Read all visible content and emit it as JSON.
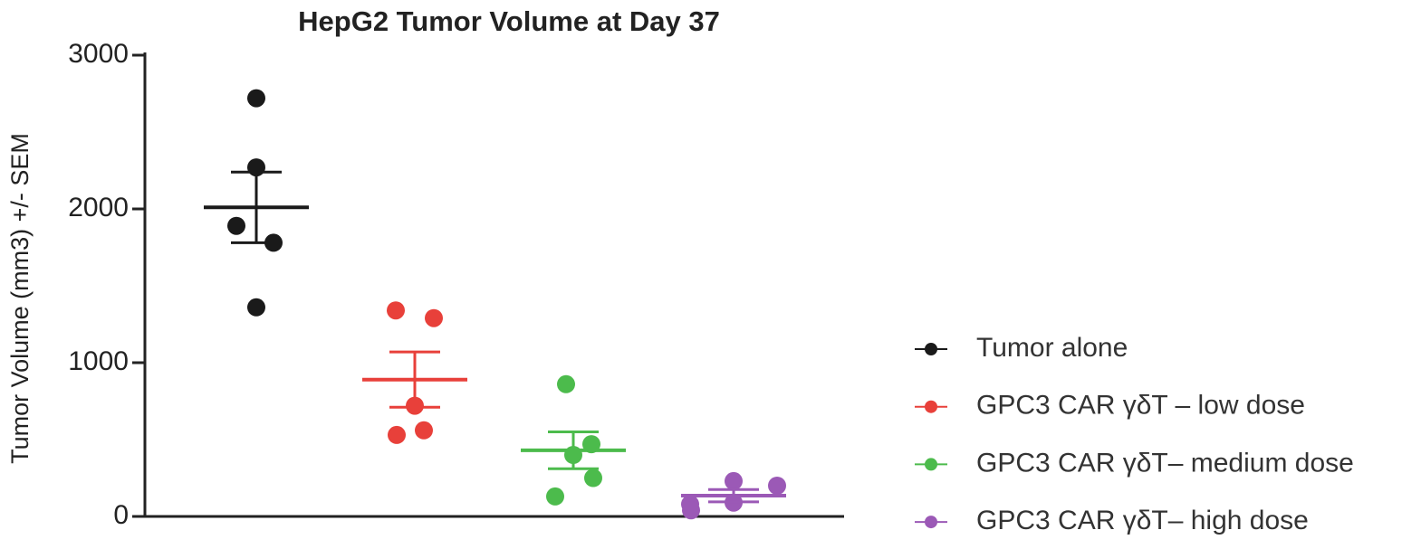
{
  "chart_data": {
    "type": "dot-sem",
    "title": "HepG2 Tumor Volume at Day 37",
    "y_label": "Tumor Volume (mm3) +/- SEM",
    "ylim": [
      0,
      3000
    ],
    "yticks": [
      0,
      1000,
      2000,
      3000
    ],
    "series": [
      {
        "name": "Tumor alone",
        "color": "#1a1a1a",
        "values": [
          2720,
          2270,
          1890,
          1780,
          1360
        ],
        "mean": 2010,
        "sem": 230
      },
      {
        "name": "GPC3 CAR γδT – low dose",
        "color": "#e8403a",
        "values": [
          1340,
          1290,
          720,
          560,
          530
        ],
        "mean": 890,
        "sem": 180
      },
      {
        "name": "GPC3 CAR γδT– medium dose",
        "color": "#4cbb4c",
        "values": [
          860,
          470,
          400,
          250,
          130
        ],
        "mean": 430,
        "sem": 120
      },
      {
        "name": "GPC3 CAR γδT– high dose",
        "color": "#9b59b6",
        "values": [
          230,
          200,
          90,
          80,
          40
        ],
        "mean": 135,
        "sem": 40
      }
    ]
  }
}
